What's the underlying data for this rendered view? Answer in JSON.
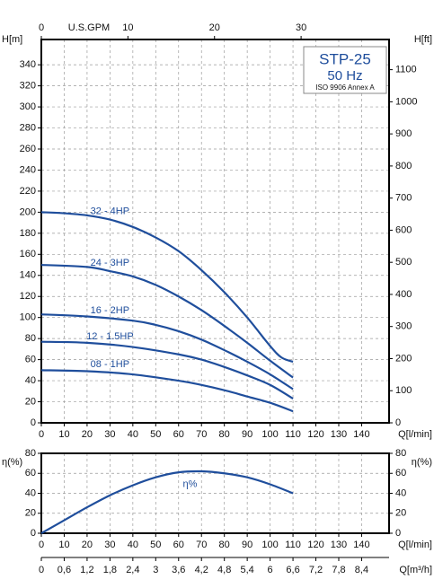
{
  "chart_data": [
    {
      "type": "line",
      "x_label": "Q[l/min]",
      "y_label": "H[m]",
      "y2_label": "H[ft]",
      "model": "STP-25",
      "frequency": "50 Hz",
      "standard": "ISO 9906 Annex A",
      "xlim": [
        0,
        152
      ],
      "xticks": [
        0,
        10,
        20,
        30,
        40,
        50,
        60,
        70,
        80,
        90,
        100,
        110,
        120,
        130,
        140
      ],
      "ylim": [
        0,
        364
      ],
      "yticks": [
        0,
        20,
        40,
        60,
        80,
        100,
        120,
        140,
        160,
        180,
        200,
        220,
        240,
        260,
        280,
        300,
        320,
        340
      ],
      "y2lim": [
        0,
        1194
      ],
      "y2ticks": [
        0,
        100,
        200,
        300,
        400,
        500,
        600,
        700,
        800,
        900,
        1000,
        1100
      ],
      "x2_label": "U.S.GPM",
      "x2lim": [
        0,
        40.16
      ],
      "x2ticks": [
        0,
        10,
        20,
        30
      ],
      "grid": true,
      "series": [
        {
          "name": "32 - 4HP",
          "color": "#1f4e9c",
          "x": [
            0,
            10,
            20,
            30,
            40,
            50,
            60,
            70,
            80,
            90,
            100,
            105,
            110
          ],
          "values": [
            200,
            199,
            197,
            193,
            186,
            176,
            163,
            145,
            124,
            100,
            73,
            62,
            58
          ]
        },
        {
          "name": "24 - 3HP",
          "color": "#1f4e9c",
          "x": [
            0,
            20,
            30,
            40,
            50,
            60,
            70,
            80,
            90,
            100,
            110
          ],
          "values": [
            150,
            148,
            144,
            139,
            131,
            120,
            107,
            92,
            76,
            59,
            43
          ]
        },
        {
          "name": "16 - 2HP",
          "color": "#1f4e9c",
          "x": [
            0,
            20,
            40,
            50,
            60,
            70,
            80,
            90,
            100,
            110
          ],
          "values": [
            103,
            101,
            97,
            93,
            87,
            79,
            69,
            58,
            46,
            32
          ]
        },
        {
          "name": "12 - 1.5HP",
          "color": "#1f4e9c",
          "x": [
            0,
            20,
            40,
            60,
            70,
            80,
            90,
            100,
            110
          ],
          "values": [
            77,
            76,
            72,
            65,
            60,
            53,
            45,
            36,
            23
          ]
        },
        {
          "name": "08 - 1HP",
          "color": "#1f4e9c",
          "x": [
            0,
            20,
            40,
            60,
            70,
            80,
            90,
            100,
            110
          ],
          "values": [
            50,
            49,
            46,
            40,
            36,
            31,
            25,
            19,
            11
          ]
        }
      ]
    },
    {
      "type": "line",
      "x_label": "Q[l/min]",
      "y_label": "η(%)",
      "y2_label": "η(%)",
      "xlim": [
        0,
        152
      ],
      "xticks": [
        0,
        10,
        20,
        30,
        40,
        50,
        60,
        70,
        80,
        90,
        100,
        110,
        120,
        130,
        140
      ],
      "ylim": [
        0,
        80
      ],
      "yticks": [
        0,
        20,
        40,
        60,
        80
      ],
      "y2lim": [
        0,
        80
      ],
      "y2ticks": [
        0,
        20,
        40,
        60,
        80
      ],
      "x3_label": "Q[m³/h]",
      "x3lim": [
        0,
        9.12
      ],
      "x3ticks": [
        0,
        {
          "value": 0.6,
          "label": "0,6"
        },
        {
          "value": 1.2,
          "label": "1,2"
        },
        {
          "value": 1.8,
          "label": "1,8"
        },
        {
          "value": 2.4,
          "label": "2,4"
        },
        3,
        {
          "value": 3.6,
          "label": "3,6"
        },
        {
          "value": 4.2,
          "label": "4,2"
        },
        {
          "value": 4.8,
          "label": "4,8"
        },
        {
          "value": 5.4,
          "label": "5,4"
        },
        6,
        {
          "value": 6.6,
          "label": "6,6"
        },
        {
          "value": 7.2,
          "label": "7,2"
        },
        {
          "value": 7.8,
          "label": "7,8"
        },
        {
          "value": 8.4,
          "label": "8,4"
        }
      ],
      "grid": true,
      "series": [
        {
          "name": "η%",
          "color": "#1f4e9c",
          "x": [
            0,
            10,
            20,
            30,
            40,
            50,
            60,
            70,
            80,
            90,
            100,
            110
          ],
          "values": [
            0,
            13,
            26,
            38,
            48,
            56,
            61,
            62,
            60,
            56,
            49,
            40
          ]
        }
      ]
    }
  ]
}
